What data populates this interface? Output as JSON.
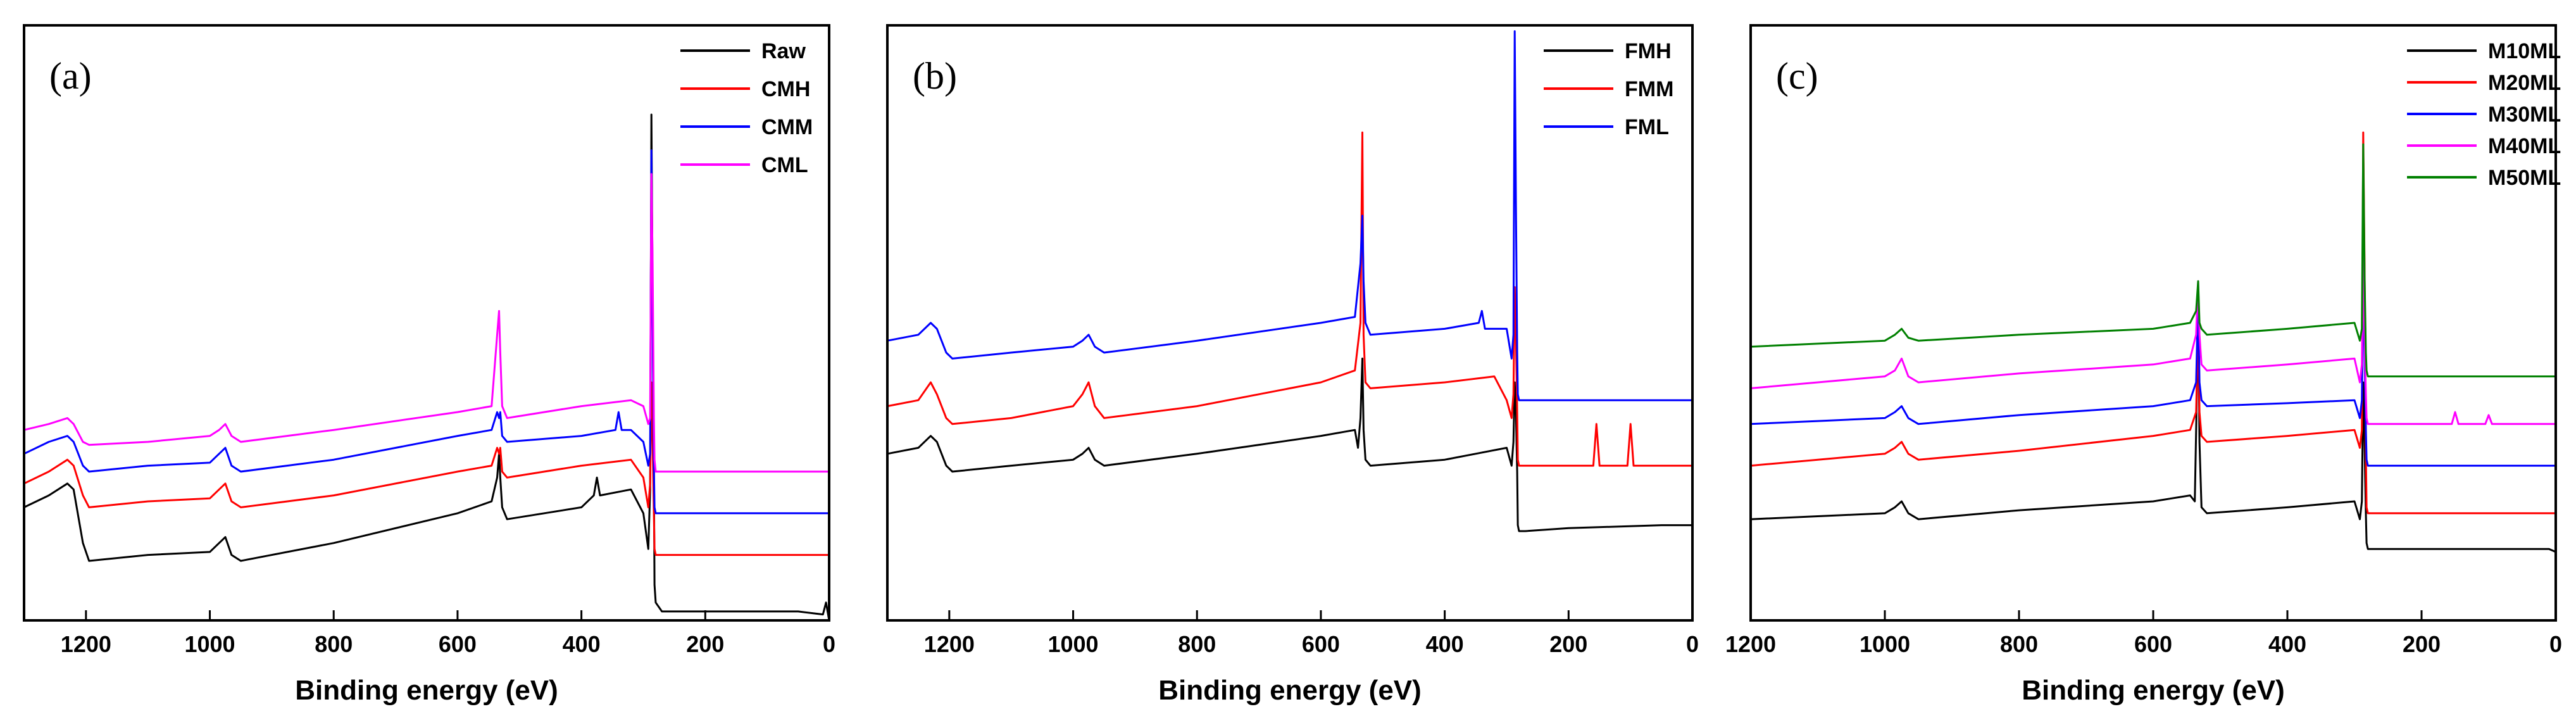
{
  "chart_data": [
    {
      "type": "line",
      "panel_label": "(a)",
      "xlabel": "Binding energy (eV)",
      "ylabel": "",
      "x_reversed": true,
      "xlim": [
        1300,
        0
      ],
      "ylim": [
        0,
        100
      ],
      "x_ticks": [
        1200,
        1000,
        800,
        600,
        400,
        200,
        0
      ],
      "x_tick_labels": [
        "1200",
        "1000",
        "800",
        "600",
        "400",
        "200",
        "0"
      ],
      "grid": false,
      "legend_position": "top-right",
      "series": [
        {
          "name": "Raw",
          "color": "#000000",
          "x": [
            1300,
            1260,
            1230,
            1220,
            1205,
            1195,
            1100,
            1000,
            985,
            975,
            965,
            950,
            800,
            600,
            545,
            536,
            533,
            531,
            528,
            520,
            400,
            380,
            375,
            370,
            320,
            300,
            292,
            289,
            287,
            285,
            283,
            282,
            280,
            270,
            200,
            50,
            10,
            5,
            0
          ],
          "y": [
            19,
            21,
            23,
            22,
            13,
            10,
            11,
            11.5,
            13,
            14,
            11,
            10,
            13,
            18,
            20,
            24,
            28,
            24,
            19,
            17,
            19,
            21,
            24,
            21,
            22,
            18,
            12,
            22,
            85,
            55,
            25,
            6,
            3,
            1.5,
            1.5,
            1.5,
            1,
            3,
            0
          ]
        },
        {
          "name": "CMH",
          "color": "#ff0000",
          "x": [
            1300,
            1260,
            1230,
            1220,
            1205,
            1195,
            1100,
            1000,
            985,
            975,
            965,
            950,
            800,
            600,
            545,
            536,
            533,
            531,
            528,
            520,
            400,
            320,
            300,
            292,
            289,
            287,
            285,
            283,
            282,
            280,
            270,
            200,
            50,
            10,
            0
          ],
          "y": [
            23,
            25,
            27,
            26,
            21,
            19,
            20,
            20.5,
            22,
            23,
            20,
            19,
            21,
            25,
            26,
            29,
            28,
            29,
            25,
            24,
            26,
            27,
            24,
            19,
            23,
            40,
            30,
            18,
            12,
            11,
            11,
            11,
            11,
            11,
            11
          ]
        },
        {
          "name": "CMM",
          "color": "#0000ff",
          "x": [
            1300,
            1260,
            1230,
            1220,
            1205,
            1195,
            1100,
            1000,
            985,
            975,
            965,
            950,
            800,
            600,
            545,
            536,
            533,
            531,
            528,
            520,
            400,
            345,
            340,
            335,
            320,
            300,
            292,
            289,
            287,
            285,
            283,
            282,
            280,
            270,
            200,
            50,
            10,
            0
          ],
          "y": [
            28,
            30,
            31,
            30,
            26,
            25,
            26,
            26.5,
            28,
            29,
            26,
            25,
            27,
            31,
            32,
            35,
            34,
            35,
            31,
            30,
            31,
            32,
            35,
            32,
            32,
            30,
            26,
            28,
            79,
            50,
            26,
            19,
            18,
            18,
            18,
            18,
            18,
            18
          ]
        },
        {
          "name": "CML",
          "color": "#ff00ff",
          "x": [
            1300,
            1260,
            1230,
            1220,
            1205,
            1195,
            1100,
            1000,
            985,
            975,
            965,
            950,
            800,
            600,
            545,
            536,
            533,
            531,
            528,
            520,
            400,
            320,
            300,
            292,
            289,
            287,
            285,
            283,
            282,
            280,
            270,
            200,
            50,
            10,
            0
          ],
          "y": [
            32,
            33,
            34,
            33,
            30,
            29.5,
            30,
            31,
            32,
            33,
            31,
            30,
            32,
            35,
            36,
            48,
            52,
            45,
            36,
            34,
            36,
            37,
            36,
            33,
            34,
            75,
            60,
            34,
            27,
            25,
            25,
            25,
            25,
            25,
            25
          ]
        }
      ]
    },
    {
      "type": "line",
      "panel_label": "(b)",
      "xlabel": "Binding energy (eV)",
      "ylabel": "",
      "x_reversed": true,
      "xlim": [
        1300,
        0
      ],
      "ylim": [
        0,
        100
      ],
      "x_ticks": [
        1200,
        1000,
        800,
        600,
        400,
        200,
        0
      ],
      "x_tick_labels": [
        "1200",
        "1000",
        "800",
        "600",
        "400",
        "200",
        "0"
      ],
      "grid": false,
      "legend_position": "top-right",
      "series": [
        {
          "name": "FMH",
          "color": "#000000",
          "x": [
            1300,
            1250,
            1230,
            1220,
            1205,
            1195,
            1100,
            1000,
            985,
            975,
            965,
            950,
            800,
            600,
            545,
            540,
            536,
            533,
            531,
            528,
            520,
            400,
            350,
            300,
            292,
            289,
            287,
            285,
            283,
            282,
            280,
            270,
            200,
            50,
            10,
            0
          ],
          "y": [
            28,
            29,
            31,
            30,
            26,
            25,
            26,
            27,
            28,
            29,
            27,
            26,
            28,
            31,
            32,
            29,
            34,
            44,
            32,
            27,
            26,
            27,
            28,
            29,
            26,
            30,
            40,
            35,
            25,
            16,
            15,
            15,
            15.5,
            16,
            16,
            16
          ]
        },
        {
          "name": "FMM",
          "color": "#ff0000",
          "x": [
            1300,
            1250,
            1230,
            1220,
            1205,
            1195,
            1100,
            1000,
            985,
            975,
            965,
            950,
            800,
            600,
            545,
            536,
            533,
            531,
            528,
            520,
            400,
            320,
            300,
            292,
            289,
            287,
            285,
            283,
            282,
            280,
            270,
            200,
            160,
            155,
            150,
            105,
            100,
            95,
            50,
            10,
            0
          ],
          "y": [
            36,
            37,
            40,
            38,
            34,
            33,
            34,
            36,
            38,
            40,
            36,
            34,
            36,
            40,
            42,
            50,
            82,
            48,
            40,
            39,
            40,
            41,
            37,
            34,
            38,
            56,
            48,
            35,
            27,
            26,
            26,
            26,
            26,
            33,
            26,
            26,
            33,
            26,
            26,
            26,
            26
          ]
        },
        {
          "name": "FML",
          "color": "#0000ff",
          "x": [
            1300,
            1250,
            1230,
            1220,
            1205,
            1195,
            1100,
            1000,
            985,
            975,
            965,
            950,
            800,
            600,
            545,
            536,
            533,
            531,
            528,
            520,
            400,
            345,
            340,
            335,
            300,
            292,
            289,
            287,
            285,
            283,
            282,
            280,
            270,
            200,
            50,
            10,
            0
          ],
          "y": [
            47,
            48,
            50,
            49,
            45,
            44,
            45,
            46,
            47,
            48,
            46,
            45,
            47,
            50,
            51,
            60,
            68,
            57,
            50,
            48,
            49,
            50,
            52,
            49,
            49,
            44,
            48,
            99,
            70,
            45,
            38,
            37,
            37,
            37,
            37,
            37,
            37
          ]
        }
      ]
    },
    {
      "type": "line",
      "panel_label": "(c)",
      "xlabel": "Binding energy (eV)",
      "ylabel": "",
      "x_reversed": true,
      "xlim": [
        1200,
        0
      ],
      "ylim": [
        0,
        100
      ],
      "x_ticks": [
        1200,
        1000,
        800,
        600,
        400,
        200,
        0
      ],
      "x_tick_labels": [
        "1200",
        "1000",
        "800",
        "600",
        "400",
        "200",
        "0"
      ],
      "grid": false,
      "legend_position": "top-right",
      "series": [
        {
          "name": "M10ML",
          "color": "#000000",
          "x": [
            1200,
            1100,
            1000,
            985,
            975,
            965,
            950,
            800,
            600,
            545,
            538,
            535,
            533,
            531,
            528,
            520,
            400,
            300,
            292,
            289,
            287,
            285,
            283,
            282,
            280,
            270,
            200,
            50,
            10,
            0
          ],
          "y": [
            17,
            17.5,
            18,
            19,
            20,
            18,
            17,
            18.5,
            20,
            21,
            20,
            38,
            54,
            30,
            19,
            18,
            19,
            20,
            17,
            20,
            40,
            30,
            18,
            13,
            12,
            12,
            12,
            12,
            12,
            11.5
          ]
        },
        {
          "name": "M20ML",
          "color": "#ff0000",
          "x": [
            1200,
            1100,
            1000,
            985,
            975,
            965,
            950,
            800,
            600,
            545,
            536,
            533,
            531,
            528,
            520,
            400,
            300,
            292,
            289,
            287,
            285,
            283,
            282,
            280,
            270,
            200,
            50,
            10,
            0
          ],
          "y": [
            26,
            27,
            28,
            29,
            30,
            28,
            27,
            28.5,
            31,
            32,
            35,
            50,
            35,
            31,
            30,
            31,
            32,
            29,
            32,
            82,
            60,
            28,
            19,
            18,
            18,
            18,
            18,
            18,
            18
          ]
        },
        {
          "name": "M30ML",
          "color": "#0000ff",
          "x": [
            1200,
            1100,
            1000,
            985,
            975,
            965,
            950,
            800,
            600,
            545,
            536,
            533,
            531,
            528,
            520,
            400,
            300,
            292,
            289,
            287,
            285,
            283,
            282,
            280,
            270,
            200,
            50,
            10,
            0
          ],
          "y": [
            33,
            33.5,
            34,
            35,
            36,
            34,
            33,
            34.5,
            36,
            37,
            40,
            54,
            40,
            37,
            36,
            36.5,
            37,
            34,
            37,
            58,
            45,
            32,
            27,
            26,
            26,
            26,
            26,
            26,
            26
          ]
        },
        {
          "name": "M40ML",
          "color": "#ff00ff",
          "x": [
            1200,
            1100,
            1000,
            985,
            975,
            965,
            950,
            800,
            600,
            545,
            536,
            533,
            531,
            528,
            520,
            400,
            300,
            292,
            289,
            287,
            285,
            283,
            282,
            280,
            270,
            200,
            155,
            150,
            145,
            105,
            100,
            95,
            50,
            10,
            0
          ],
          "y": [
            39,
            40,
            41,
            42,
            44,
            41,
            40,
            41.5,
            43,
            44,
            48,
            57,
            48,
            43,
            42,
            43,
            44,
            40,
            43,
            62,
            48,
            38,
            34,
            33,
            33,
            33,
            33,
            35,
            33,
            33,
            34.5,
            33,
            33,
            33,
            33
          ]
        },
        {
          "name": "M50ML",
          "color": "#008000",
          "x": [
            1200,
            1100,
            1000,
            985,
            975,
            965,
            950,
            800,
            600,
            545,
            536,
            533,
            531,
            528,
            520,
            400,
            300,
            292,
            289,
            287,
            285,
            283,
            282,
            280,
            270,
            200,
            50,
            10,
            0
          ],
          "y": [
            46,
            46.5,
            47,
            48,
            49,
            47.5,
            47,
            48,
            49,
            50,
            52,
            57,
            50,
            49,
            48,
            49,
            50,
            47,
            49,
            80,
            58,
            45,
            42,
            41,
            41,
            41,
            41,
            41,
            41
          ]
        }
      ]
    }
  ]
}
